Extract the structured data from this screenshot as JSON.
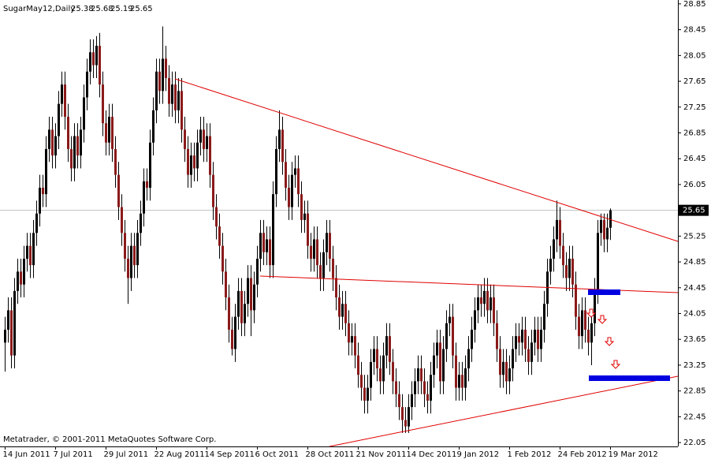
{
  "chart_data": {
    "type": "candlestick",
    "title": "SugarMay12,Daily",
    "footer": "Metatrader, © 2001-2011 MetaQuotes Software Corp.",
    "categories": [
      "14 Jun 2011",
      null,
      null,
      null,
      null,
      null,
      null,
      null,
      null,
      null,
      null,
      null,
      null,
      null,
      null,
      null,
      "7 Jul 2011",
      null,
      null,
      null,
      null,
      null,
      null,
      null,
      null,
      null,
      null,
      null,
      null,
      null,
      null,
      null,
      "29 Jul 2011",
      null,
      null,
      null,
      null,
      null,
      null,
      null,
      null,
      null,
      null,
      null,
      null,
      null,
      null,
      null,
      "22 Aug 2011",
      null,
      null,
      null,
      null,
      null,
      null,
      null,
      null,
      null,
      null,
      null,
      null,
      null,
      null,
      null,
      "14 Sep 2011",
      null,
      null,
      null,
      null,
      null,
      null,
      null,
      null,
      null,
      null,
      null,
      null,
      null,
      null,
      null,
      "6 Oct 2011",
      null,
      null,
      null,
      null,
      null,
      null,
      null,
      null,
      null,
      null,
      null,
      null,
      null,
      null,
      null,
      "28 Oct 2011",
      null,
      null,
      null,
      null,
      null,
      null,
      null,
      null,
      null,
      null,
      null,
      null,
      null,
      null,
      null,
      "21 Nov 2011",
      null,
      null,
      null,
      null,
      null,
      null,
      null,
      null,
      null,
      null,
      null,
      null,
      null,
      null,
      null,
      "14 Dec 2011",
      null,
      null,
      null,
      null,
      null,
      null,
      null,
      null,
      null,
      null,
      null,
      null,
      null,
      null,
      null,
      "9 Jan 2012",
      null,
      null,
      null,
      null,
      null,
      null,
      null,
      null,
      null,
      null,
      null,
      null,
      null,
      null,
      null,
      "1 Feb 2012",
      null,
      null,
      null,
      null,
      null,
      null,
      null,
      null,
      null,
      null,
      null,
      null,
      null,
      null,
      null,
      "24 Feb 2012",
      null,
      null,
      null,
      null,
      null,
      null,
      null,
      null,
      null,
      null,
      null,
      null,
      null,
      null,
      null,
      "19 Mar 2012"
    ],
    "open": [
      23.6,
      23.8,
      24.1,
      23.4,
      24.4,
      24.7,
      24.5,
      24.9,
      25.1,
      24.8,
      25.3,
      25.6,
      26.0,
      25.9,
      26.6,
      26.9,
      26.5,
      26.8,
      27.3,
      27.6,
      27.1,
      26.6,
      26.3,
      26.8,
      26.5,
      26.9,
      27.4,
      27.8,
      28.1,
      27.9,
      28.2,
      27.6,
      27.0,
      26.7,
      27.1,
      26.6,
      26.2,
      25.7,
      25.3,
      24.9,
      24.6,
      25.1,
      24.8,
      25.3,
      25.6,
      26.1,
      26.0,
      26.7,
      27.2,
      27.8,
      27.5,
      28.0,
      27.7,
      27.3,
      27.6,
      27.2,
      27.5,
      26.9,
      26.6,
      26.2,
      26.5,
      26.3,
      26.7,
      26.9,
      26.6,
      26.8,
      26.2,
      25.7,
      25.4,
      25.1,
      24.7,
      24.3,
      23.8,
      23.5,
      24.0,
      24.4,
      23.9,
      24.2,
      24.6,
      24.1,
      24.5,
      24.9,
      25.3,
      25.0,
      25.2,
      24.8,
      25.9,
      26.6,
      26.9,
      26.4,
      26.0,
      25.7,
      26.2,
      26.3,
      25.9,
      25.5,
      25.6,
      25.1,
      24.9,
      25.2,
      24.8,
      24.6,
      25.0,
      25.3,
      24.9,
      24.6,
      24.3,
      24.0,
      24.2,
      23.9,
      23.6,
      23.7,
      23.4,
      23.1,
      22.9,
      22.7,
      22.9,
      23.3,
      23.5,
      23.2,
      23.0,
      23.4,
      23.7,
      23.3,
      23.0,
      22.8,
      22.6,
      22.4,
      22.3,
      22.6,
      22.8,
      23.0,
      23.2,
      23.0,
      22.8,
      22.7,
      23.1,
      23.4,
      23.6,
      23.0,
      23.5,
      23.9,
      24.0,
      23.4,
      22.9,
      23.1,
      22.9,
      23.2,
      23.5,
      23.8,
      24.1,
      24.3,
      24.2,
      24.4,
      24.1,
      24.3,
      23.9,
      23.5,
      23.1,
      23.3,
      23.0,
      23.2,
      23.5,
      23.7,
      23.6,
      23.8,
      23.5,
      23.3,
      23.6,
      23.8,
      23.5,
      23.8,
      24.2,
      24.7,
      24.9,
      25.2,
      25.5,
      25.1,
      24.8,
      24.6,
      24.9,
      24.5,
      24.0,
      23.7,
      24.1,
      23.8,
      23.6,
      23.9,
      24.4,
      25.3,
      25.5,
      25.2,
      25.38
    ],
    "high": [
      24.0,
      24.3,
      24.3,
      24.6,
      24.9,
      24.9,
      25.1,
      25.3,
      25.3,
      25.5,
      25.8,
      26.2,
      26.2,
      26.8,
      27.1,
      27.1,
      27.0,
      27.5,
      27.8,
      27.8,
      27.3,
      26.8,
      27.0,
      27.0,
      27.1,
      27.6,
      28.0,
      28.3,
      28.3,
      28.35,
      28.4,
      27.8,
      27.2,
      27.3,
      27.3,
      26.8,
      26.4,
      25.9,
      25.5,
      25.1,
      25.3,
      25.3,
      25.5,
      25.8,
      26.3,
      26.3,
      26.9,
      27.4,
      28.0,
      28.0,
      28.5,
      28.2,
      27.9,
      27.8,
      27.8,
      27.7,
      27.7,
      27.1,
      26.8,
      26.7,
      26.7,
      26.9,
      27.1,
      27.1,
      27.0,
      27.0,
      26.4,
      25.9,
      25.6,
      25.3,
      24.9,
      24.5,
      24.0,
      24.2,
      24.6,
      24.6,
      24.4,
      24.8,
      24.8,
      24.7,
      25.1,
      25.5,
      25.5,
      25.4,
      25.4,
      26.1,
      26.8,
      27.2,
      27.1,
      26.6,
      26.2,
      26.4,
      26.5,
      26.5,
      26.1,
      25.8,
      25.8,
      25.3,
      25.4,
      25.4,
      25.0,
      25.2,
      25.5,
      25.5,
      25.1,
      24.8,
      24.5,
      24.4,
      24.4,
      24.1,
      23.9,
      23.9,
      23.6,
      23.3,
      23.1,
      23.1,
      23.5,
      23.7,
      23.7,
      23.4,
      23.6,
      23.9,
      23.9,
      23.5,
      23.2,
      23.0,
      22.8,
      22.6,
      22.8,
      23.0,
      23.2,
      23.4,
      23.4,
      23.2,
      23.0,
      23.3,
      23.6,
      23.8,
      23.8,
      23.7,
      24.1,
      24.2,
      24.2,
      23.6,
      23.3,
      23.3,
      23.4,
      23.7,
      24.0,
      24.3,
      24.5,
      24.5,
      24.6,
      24.6,
      24.5,
      24.5,
      24.1,
      23.7,
      23.5,
      23.5,
      23.4,
      23.7,
      23.9,
      23.9,
      24.0,
      24.0,
      23.7,
      23.8,
      24.0,
      24.0,
      24.0,
      24.4,
      24.9,
      25.1,
      25.4,
      25.8,
      25.7,
      25.3,
      25.0,
      25.1,
      25.1,
      24.7,
      24.2,
      24.3,
      24.3,
      24.0,
      24.1,
      24.6,
      25.5,
      25.6,
      25.6,
      25.6,
      25.68
    ],
    "low": [
      23.15,
      23.6,
      23.2,
      23.2,
      24.2,
      24.3,
      24.3,
      24.7,
      24.6,
      24.6,
      25.1,
      25.4,
      25.7,
      25.7,
      26.4,
      26.3,
      26.3,
      26.6,
      27.1,
      26.9,
      26.4,
      26.1,
      26.1,
      26.3,
      26.3,
      26.7,
      27.2,
      27.6,
      27.7,
      27.7,
      27.4,
      26.8,
      26.5,
      26.5,
      26.4,
      26.0,
      25.5,
      25.1,
      24.7,
      24.2,
      24.4,
      24.6,
      24.6,
      25.1,
      25.4,
      25.8,
      25.8,
      26.5,
      27.0,
      27.3,
      27.3,
      27.5,
      27.1,
      27.1,
      27.0,
      27.0,
      26.7,
      26.4,
      26.0,
      26.0,
      26.1,
      26.1,
      26.5,
      26.4,
      26.4,
      26.0,
      25.5,
      25.2,
      24.9,
      24.5,
      24.1,
      23.6,
      23.4,
      23.3,
      23.8,
      23.7,
      23.7,
      24.0,
      23.7,
      23.9,
      24.3,
      24.7,
      24.8,
      24.8,
      24.6,
      24.6,
      25.7,
      26.4,
      26.2,
      25.8,
      25.5,
      25.5,
      26.0,
      25.7,
      25.3,
      25.3,
      24.9,
      24.7,
      24.7,
      24.6,
      24.4,
      24.4,
      24.8,
      24.7,
      24.4,
      24.1,
      23.8,
      23.8,
      23.7,
      23.4,
      23.4,
      23.2,
      22.9,
      22.7,
      22.5,
      22.5,
      22.7,
      23.1,
      23.0,
      22.8,
      22.8,
      23.2,
      23.1,
      22.8,
      22.6,
      22.4,
      22.2,
      22.2,
      22.2,
      22.4,
      22.6,
      22.8,
      22.8,
      22.6,
      22.5,
      22.5,
      22.9,
      23.2,
      22.8,
      22.8,
      23.3,
      23.7,
      23.2,
      22.7,
      22.7,
      22.7,
      22.7,
      23.0,
      23.3,
      23.6,
      23.9,
      24.0,
      24.0,
      23.9,
      23.9,
      23.7,
      23.3,
      22.9,
      22.9,
      22.8,
      22.8,
      23.0,
      23.3,
      23.4,
      23.4,
      23.3,
      23.1,
      23.1,
      23.4,
      23.3,
      23.3,
      23.6,
      24.0,
      24.5,
      24.7,
      25.0,
      24.9,
      24.6,
      24.4,
      24.4,
      24.3,
      23.8,
      23.5,
      23.5,
      23.6,
      23.4,
      23.25,
      23.7,
      24.2,
      25.1,
      25.0,
      25.0,
      25.19
    ],
    "close": [
      23.8,
      24.1,
      23.4,
      24.4,
      24.7,
      24.5,
      24.9,
      25.1,
      24.8,
      25.3,
      25.6,
      26.0,
      25.9,
      26.6,
      26.9,
      26.5,
      26.8,
      27.3,
      27.6,
      27.1,
      26.6,
      26.3,
      26.8,
      26.5,
      26.9,
      27.4,
      27.8,
      28.1,
      27.9,
      28.2,
      27.6,
      27.0,
      26.7,
      27.1,
      26.6,
      26.2,
      25.7,
      25.3,
      24.9,
      24.6,
      25.1,
      24.8,
      25.3,
      25.6,
      26.1,
      26.0,
      26.7,
      27.2,
      27.8,
      27.5,
      28.0,
      27.7,
      27.3,
      27.6,
      27.2,
      27.5,
      26.9,
      26.6,
      26.2,
      26.5,
      26.3,
      26.7,
      26.9,
      26.6,
      26.8,
      26.2,
      25.7,
      25.4,
      25.1,
      24.7,
      24.3,
      23.8,
      23.5,
      24.0,
      24.4,
      23.9,
      24.2,
      24.6,
      24.1,
      24.5,
      24.9,
      25.3,
      25.0,
      25.2,
      24.8,
      25.9,
      26.6,
      26.9,
      26.4,
      26.0,
      25.7,
      26.2,
      26.3,
      25.9,
      25.5,
      25.6,
      25.1,
      24.9,
      25.2,
      24.8,
      24.6,
      25.0,
      25.3,
      24.9,
      24.6,
      24.3,
      24.0,
      24.2,
      23.9,
      23.6,
      23.7,
      23.4,
      23.1,
      22.9,
      22.7,
      22.9,
      23.3,
      23.5,
      23.2,
      23.0,
      23.4,
      23.7,
      23.3,
      23.0,
      22.8,
      22.6,
      22.4,
      22.3,
      22.6,
      22.8,
      23.0,
      23.2,
      23.0,
      22.8,
      22.7,
      23.1,
      23.4,
      23.6,
      23.0,
      23.5,
      23.9,
      24.0,
      23.4,
      22.9,
      23.1,
      22.9,
      23.2,
      23.5,
      23.8,
      24.1,
      24.3,
      24.2,
      24.4,
      24.1,
      24.3,
      23.9,
      23.5,
      23.1,
      23.3,
      23.0,
      23.2,
      23.5,
      23.7,
      23.6,
      23.8,
      23.5,
      23.3,
      23.6,
      23.8,
      23.5,
      23.8,
      24.2,
      24.7,
      24.9,
      25.2,
      25.5,
      25.1,
      24.8,
      24.6,
      24.9,
      24.5,
      24.0,
      23.7,
      24.1,
      23.8,
      23.6,
      23.9,
      24.4,
      25.3,
      25.5,
      25.2,
      25.38,
      25.65
    ],
    "up_color": "#000000",
    "down_color": "#8b1a1a",
    "ylim": [
      21.99,
      28.91
    ],
    "yticks": [
      22.05,
      22.45,
      22.85,
      23.25,
      23.65,
      24.05,
      24.45,
      24.85,
      25.25,
      25.65,
      26.05,
      26.45,
      26.85,
      27.25,
      27.65,
      28.05,
      28.45,
      28.85
    ]
  }
}
